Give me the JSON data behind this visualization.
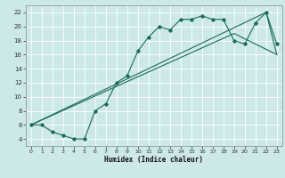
{
  "bg_color": "#cce8e8",
  "grid_color": "#aad4d4",
  "line_color": "#1a6b5a",
  "xlabel": "Humidex (Indice chaleur)",
  "xlim": [
    -0.5,
    23.5
  ],
  "ylim": [
    3.0,
    23.0
  ],
  "xticks": [
    0,
    1,
    2,
    3,
    4,
    5,
    6,
    7,
    8,
    9,
    10,
    11,
    12,
    13,
    14,
    15,
    16,
    17,
    18,
    19,
    20,
    21,
    22,
    23
  ],
  "yticks": [
    4,
    6,
    8,
    10,
    12,
    14,
    16,
    18,
    20,
    22
  ],
  "main_x": [
    0,
    1,
    2,
    3,
    4,
    5,
    6,
    7,
    8,
    9,
    10,
    11,
    12,
    13,
    14,
    15,
    16,
    17,
    18,
    19,
    20,
    21,
    22,
    23
  ],
  "main_y": [
    6,
    6,
    5,
    4.5,
    4,
    4,
    8,
    9,
    12,
    13,
    16.5,
    18.5,
    20,
    19.5,
    21,
    21,
    21.5,
    21,
    21,
    18,
    17.5,
    20.5,
    22,
    17.5
  ],
  "line1_x": [
    0,
    22,
    23
  ],
  "line1_y": [
    6,
    22,
    16
  ],
  "line2_x": [
    0,
    19,
    23
  ],
  "line2_y": [
    6,
    19,
    16
  ]
}
